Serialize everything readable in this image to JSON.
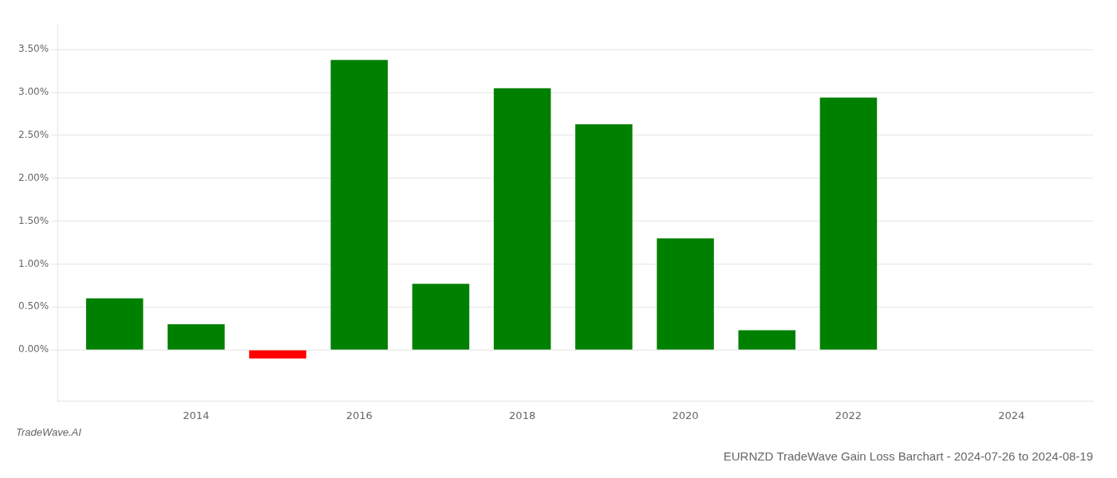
{
  "chart_data": {
    "type": "bar",
    "title": "EURNZD TradeWave Gain Loss Barchart - 2024-07-26 to 2024-08-19",
    "annotations": [
      "TradeWave.AI"
    ],
    "x": [
      2013,
      2014,
      2015,
      2016,
      2017,
      2018,
      2019,
      2020,
      2021,
      2022,
      2023
    ],
    "values": [
      0.006,
      0.003,
      -0.001,
      0.0338,
      0.0077,
      0.0305,
      0.0263,
      0.013,
      0.0023,
      0.0294,
      0
    ],
    "colors": [
      "#008000",
      "#008000",
      "#ff0000",
      "#008000",
      "#008000",
      "#008000",
      "#008000",
      "#008000",
      "#008000",
      "#008000",
      "#008000"
    ],
    "xlim": [
      2012.3,
      2025.0
    ],
    "xticks": [
      2014,
      2016,
      2018,
      2020,
      2022,
      2024
    ],
    "ylim": [
      -0.006,
      0.038
    ],
    "yticks": [
      {
        "value": 0.0,
        "label": "0.00%"
      },
      {
        "value": 0.005,
        "label": "0.50%"
      },
      {
        "value": 0.01,
        "label": "1.00%"
      },
      {
        "value": 0.015,
        "label": "1.50%"
      },
      {
        "value": 0.02,
        "label": "2.00%"
      },
      {
        "value": 0.025,
        "label": "2.50%"
      },
      {
        "value": 0.03,
        "label": "3.00%"
      },
      {
        "value": 0.035,
        "label": "3.50%"
      }
    ],
    "grid": "y"
  }
}
